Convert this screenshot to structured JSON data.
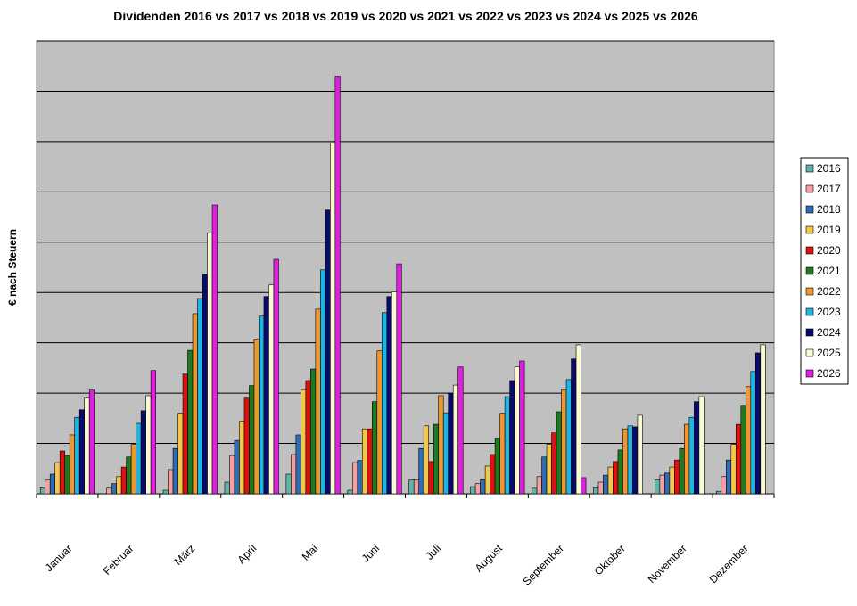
{
  "chart_data": {
    "type": "bar",
    "title": "Dividenden 2016 vs 2017 vs 2018 vs 2019 vs 2020 vs 2021 vs 2022 vs 2023 vs 2024 vs 2025 vs 2026",
    "y_label": "€ nach Steuern",
    "categories": [
      "Januar",
      "Februar",
      "März",
      "April",
      "Mai",
      "Juni",
      "Juli",
      "August",
      "September",
      "Oktober",
      "November",
      "Dezember"
    ],
    "series": [
      {
        "name": "2016",
        "color": "#5fb3a8",
        "values": [
          0.12,
          0,
          0.07,
          0.23,
          0.39,
          0.07,
          0.28,
          0.14,
          0.11,
          0.12,
          0.28,
          0.05
        ]
      },
      {
        "name": "2017",
        "color": "#f4a0a0",
        "values": [
          0.27,
          0.11,
          0.48,
          0.76,
          0.78,
          0.62,
          0.27,
          0.2,
          0.34,
          0.23,
          0.37,
          0.34
        ]
      },
      {
        "name": "2018",
        "color": "#2e6db4",
        "values": [
          0.39,
          0.2,
          0.9,
          1.06,
          1.17,
          0.66,
          0.9,
          0.28,
          0.73,
          0.37,
          0.41,
          0.67
        ]
      },
      {
        "name": "2019",
        "color": "#f2c84b",
        "values": [
          0.62,
          0.34,
          1.6,
          1.44,
          2.07,
          1.29,
          1.35,
          0.55,
          0.98,
          0.53,
          0.53,
          0.98
        ]
      },
      {
        "name": "2020",
        "color": "#e01010",
        "values": [
          0.85,
          0.53,
          2.38,
          1.9,
          2.25,
          1.29,
          0.64,
          0.78,
          1.21,
          0.64,
          0.67,
          1.38
        ]
      },
      {
        "name": "2021",
        "color": "#1e7a1e",
        "values": [
          0.76,
          0.73,
          2.85,
          2.15,
          2.48,
          1.83,
          1.38,
          1.1,
          1.63,
          0.87,
          0.9,
          1.74
        ]
      },
      {
        "name": "2022",
        "color": "#f0962f",
        "values": [
          1.17,
          0.98,
          3.58,
          3.07,
          3.67,
          2.84,
          1.95,
          1.6,
          2.07,
          1.29,
          1.38,
          2.13
        ]
      },
      {
        "name": "2023",
        "color": "#1fb4e4",
        "values": [
          1.52,
          1.4,
          3.88,
          3.53,
          4.45,
          3.6,
          1.61,
          1.93,
          2.27,
          1.35,
          1.52,
          2.43
        ]
      },
      {
        "name": "2024",
        "color": "#0a0a6a",
        "values": [
          1.67,
          1.65,
          4.36,
          3.92,
          5.64,
          3.92,
          2.0,
          2.25,
          2.68,
          1.33,
          1.83,
          2.8
        ]
      },
      {
        "name": "2025",
        "color": "#fafad2",
        "values": [
          1.9,
          1.95,
          5.18,
          4.15,
          6.97,
          4.01,
          2.16,
          2.52,
          2.96,
          1.56,
          1.93,
          2.96
        ]
      },
      {
        "name": "2026",
        "color": "#e020e0",
        "values": [
          2.06,
          2.45,
          5.74,
          4.66,
          8.3,
          4.57,
          2.52,
          2.64,
          0.32,
          null,
          null,
          null
        ]
      }
    ],
    "ylim": [
      0,
      9
    ],
    "yticks": [
      0,
      1,
      2,
      3,
      4,
      5,
      6,
      7,
      8,
      9
    ],
    "grid": true,
    "legend": "right"
  }
}
